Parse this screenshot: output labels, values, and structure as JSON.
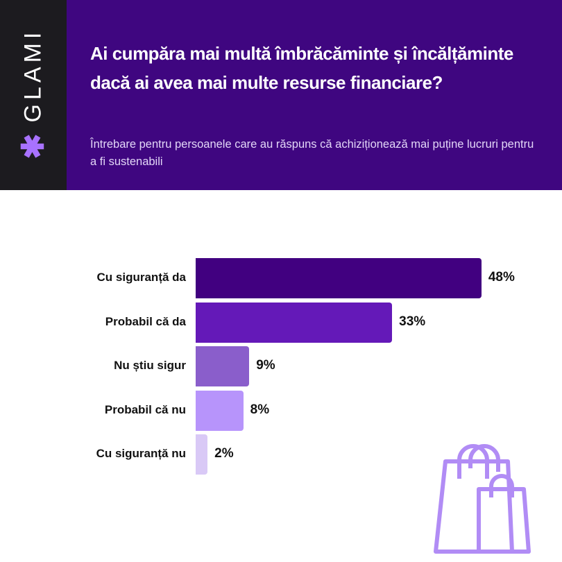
{
  "brand": {
    "logo": "GLAMI",
    "logo_icon": "asterisk-icon"
  },
  "header": {
    "title": "Ai cumpăra mai multă îmbrăcăminte și încălțăminte dacă ai avea mai multe resurse financiare?",
    "subtitle": "Întrebare pentru persoanele care au răspuns că achiziționează mai puține lucruri pentru a fi sustenabili"
  },
  "chart_data": {
    "type": "bar",
    "orientation": "horizontal",
    "categories": [
      "Cu siguranță da",
      "Probabil că da",
      "Nu știu sigur",
      "Probabil că nu",
      "Cu siguranță nu"
    ],
    "values": [
      48,
      33,
      9,
      8,
      2
    ],
    "value_labels": [
      "48%",
      "33%",
      "9%",
      "8%",
      "2%"
    ],
    "colors": [
      "#410080",
      "#6419b8",
      "#8a5ecb",
      "#b794fb",
      "#d9c9f6"
    ],
    "unit": "%",
    "grid": false
  },
  "decoration": {
    "icon": "shopping-bags-icon",
    "color": "#b18cf5"
  }
}
